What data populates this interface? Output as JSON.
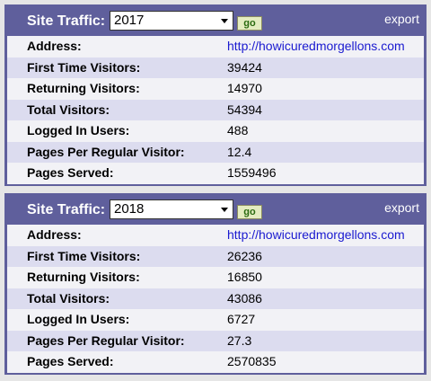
{
  "panels": [
    {
      "title": "Site Traffic:",
      "year": "2017",
      "button": "go",
      "export": "export",
      "rows": [
        [
          "Address:",
          "http://howicuredmorgellons.com"
        ],
        [
          "First Time Visitors:",
          "39424"
        ],
        [
          "Returning Visitors:",
          "14970"
        ],
        [
          "Total Visitors:",
          "54394"
        ],
        [
          "Logged In Users:",
          "488"
        ],
        [
          "Pages Per Regular Visitor:",
          "12.4"
        ],
        [
          "Pages Served:",
          "1559496"
        ]
      ]
    },
    {
      "title": "Site Traffic:",
      "year": "2018",
      "button": "go",
      "export": "export",
      "rows": [
        [
          "Address:",
          "http://howicuredmorgellons.com"
        ],
        [
          "First Time Visitors:",
          "26236"
        ],
        [
          "Returning Visitors:",
          "16850"
        ],
        [
          "Total Visitors:",
          "43086"
        ],
        [
          "Logged In Users:",
          "6727"
        ],
        [
          "Pages Per Regular Visitor:",
          "27.3"
        ],
        [
          "Pages Served:",
          "2570835"
        ]
      ]
    }
  ]
}
